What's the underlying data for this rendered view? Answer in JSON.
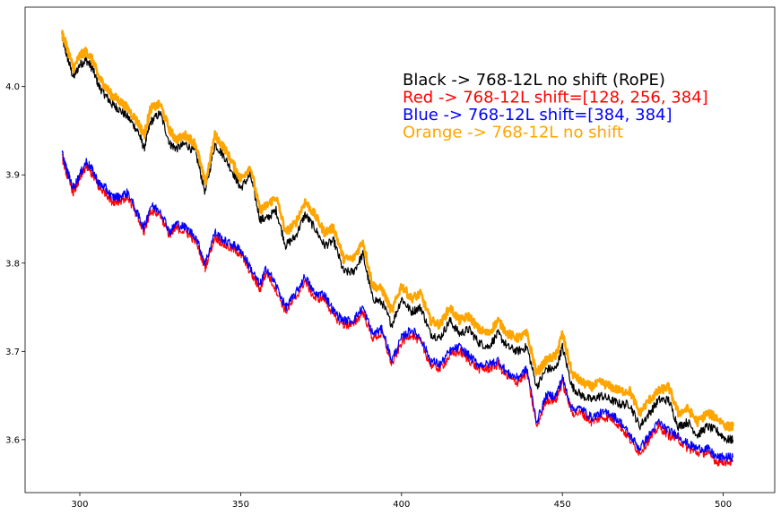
{
  "chart_data": {
    "type": "line",
    "title": "",
    "xlabel": "",
    "ylabel": "",
    "xlim": [
      283,
      516
    ],
    "ylim": [
      3.54,
      4.09
    ],
    "grid": false,
    "legend_placement": "top-right",
    "x_ticks": [
      300,
      350,
      400,
      450,
      500
    ],
    "x_tick_labels": [
      "300",
      "350",
      "400",
      "450",
      "500"
    ],
    "y_ticks": [
      3.6,
      3.7,
      3.8,
      3.9,
      4.0
    ],
    "y_tick_labels": [
      "3.6",
      "3.7",
      "3.8",
      "3.9",
      "4.0"
    ],
    "legend": [
      {
        "text": "Black -> 768-12L no shift (RoPE)",
        "color": "#000000"
      },
      {
        "text": "Red -> 768-12L shift=[128, 256, 384]",
        "color": "#ff0000"
      },
      {
        "text": "Blue -> 768-12L shift=[384, 384]",
        "color": "#0000ff"
      },
      {
        "text": "Orange -> 768-12L no shift",
        "color": "#ffa500"
      }
    ],
    "series": [
      {
        "color": "#000000",
        "stroke_width": 1.2,
        "x": [
          294.5,
          296,
          298,
          300,
          302,
          304,
          306,
          308,
          310,
          312,
          315,
          318,
          320,
          322,
          325,
          328,
          330,
          333,
          336,
          339,
          342,
          345,
          348,
          350,
          353,
          356,
          358,
          361,
          364,
          367,
          370,
          373,
          376,
          379,
          382,
          385,
          388,
          391,
          394,
          397,
          400,
          403,
          406,
          409,
          412,
          415,
          418,
          421,
          424,
          427,
          430,
          433,
          436,
          439,
          442,
          445,
          448,
          450,
          453,
          456,
          459,
          462,
          465,
          468,
          471,
          474,
          477,
          480,
          483,
          486,
          489,
          492,
          495,
          498,
          501,
          503
        ],
        "y": [
          4.055,
          4.035,
          4.01,
          4.025,
          4.03,
          4.02,
          4.0,
          3.99,
          3.98,
          3.975,
          3.965,
          3.95,
          3.93,
          3.96,
          3.97,
          3.935,
          3.93,
          3.935,
          3.925,
          3.88,
          3.935,
          3.92,
          3.9,
          3.885,
          3.9,
          3.85,
          3.85,
          3.86,
          3.82,
          3.83,
          3.855,
          3.84,
          3.82,
          3.825,
          3.79,
          3.79,
          3.81,
          3.76,
          3.755,
          3.73,
          3.76,
          3.745,
          3.75,
          3.72,
          3.715,
          3.735,
          3.72,
          3.725,
          3.71,
          3.705,
          3.72,
          3.705,
          3.7,
          3.705,
          3.66,
          3.68,
          3.68,
          3.705,
          3.66,
          3.65,
          3.645,
          3.65,
          3.645,
          3.64,
          3.64,
          3.615,
          3.63,
          3.645,
          3.645,
          3.615,
          3.62,
          3.605,
          3.615,
          3.61,
          3.6,
          3.6
        ]
      },
      {
        "color": "#ffa500",
        "stroke_width": 2.6,
        "x": [
          294.5,
          296,
          298,
          300,
          302,
          304,
          306,
          308,
          310,
          312,
          315,
          318,
          320,
          322,
          325,
          328,
          330,
          333,
          336,
          339,
          342,
          345,
          348,
          350,
          353,
          356,
          358,
          361,
          364,
          367,
          370,
          373,
          376,
          379,
          382,
          385,
          388,
          391,
          394,
          397,
          400,
          403,
          406,
          409,
          412,
          415,
          418,
          421,
          424,
          427,
          430,
          433,
          436,
          439,
          442,
          445,
          448,
          450,
          453,
          456,
          459,
          462,
          465,
          468,
          471,
          474,
          477,
          480,
          483,
          486,
          489,
          492,
          495,
          498,
          501,
          503
        ],
        "y": [
          4.06,
          4.045,
          4.02,
          4.035,
          4.04,
          4.03,
          4.01,
          4.0,
          3.99,
          3.985,
          3.975,
          3.96,
          3.945,
          3.975,
          3.98,
          3.95,
          3.94,
          3.945,
          3.935,
          3.89,
          3.945,
          3.93,
          3.91,
          3.895,
          3.91,
          3.86,
          3.865,
          3.875,
          3.835,
          3.845,
          3.87,
          3.855,
          3.835,
          3.84,
          3.805,
          3.805,
          3.825,
          3.775,
          3.77,
          3.745,
          3.775,
          3.76,
          3.765,
          3.735,
          3.73,
          3.75,
          3.735,
          3.74,
          3.725,
          3.72,
          3.735,
          3.72,
          3.715,
          3.72,
          3.675,
          3.69,
          3.695,
          3.72,
          3.675,
          3.665,
          3.66,
          3.665,
          3.66,
          3.655,
          3.655,
          3.63,
          3.645,
          3.655,
          3.66,
          3.63,
          3.635,
          3.62,
          3.63,
          3.625,
          3.615,
          3.615
        ]
      },
      {
        "color": "#ff0000",
        "stroke_width": 1.2,
        "x": [
          294.5,
          296,
          298,
          300,
          302,
          304,
          306,
          308,
          310,
          312,
          315,
          318,
          320,
          322,
          325,
          328,
          330,
          333,
          336,
          339,
          342,
          345,
          348,
          350,
          353,
          356,
          358,
          361,
          364,
          367,
          370,
          373,
          376,
          379,
          382,
          385,
          388,
          391,
          394,
          397,
          400,
          403,
          406,
          409,
          412,
          415,
          418,
          421,
          424,
          427,
          430,
          433,
          436,
          439,
          442,
          445,
          448,
          450,
          453,
          456,
          459,
          462,
          465,
          468,
          471,
          474,
          477,
          480,
          483,
          486,
          489,
          492,
          495,
          498,
          501,
          503
        ],
        "y": [
          3.92,
          3.9,
          3.88,
          3.895,
          3.91,
          3.9,
          3.885,
          3.88,
          3.87,
          3.87,
          3.875,
          3.85,
          3.835,
          3.86,
          3.855,
          3.83,
          3.84,
          3.835,
          3.825,
          3.795,
          3.83,
          3.82,
          3.815,
          3.81,
          3.79,
          3.77,
          3.79,
          3.77,
          3.745,
          3.76,
          3.78,
          3.76,
          3.76,
          3.74,
          3.73,
          3.73,
          3.745,
          3.715,
          3.72,
          3.685,
          3.71,
          3.72,
          3.71,
          3.685,
          3.68,
          3.695,
          3.7,
          3.69,
          3.68,
          3.68,
          3.685,
          3.67,
          3.665,
          3.675,
          3.615,
          3.645,
          3.645,
          3.665,
          3.63,
          3.63,
          3.62,
          3.625,
          3.625,
          3.615,
          3.6,
          3.585,
          3.6,
          3.615,
          3.605,
          3.6,
          3.59,
          3.585,
          3.585,
          3.575,
          3.575,
          3.575
        ]
      },
      {
        "color": "#0000ff",
        "stroke_width": 1.2,
        "x": [
          294.5,
          296,
          298,
          300,
          302,
          304,
          306,
          308,
          310,
          312,
          315,
          318,
          320,
          322,
          325,
          328,
          330,
          333,
          336,
          339,
          342,
          345,
          348,
          350,
          353,
          356,
          358,
          361,
          364,
          367,
          370,
          373,
          376,
          379,
          382,
          385,
          388,
          391,
          394,
          397,
          400,
          403,
          406,
          409,
          412,
          415,
          418,
          421,
          424,
          427,
          430,
          433,
          436,
          439,
          442,
          445,
          448,
          450,
          453,
          456,
          459,
          462,
          465,
          468,
          471,
          474,
          477,
          480,
          483,
          486,
          489,
          492,
          495,
          498,
          501,
          503
        ],
        "y": [
          3.925,
          3.905,
          3.885,
          3.9,
          3.915,
          3.905,
          3.89,
          3.885,
          3.875,
          3.875,
          3.88,
          3.855,
          3.84,
          3.865,
          3.86,
          3.835,
          3.845,
          3.84,
          3.83,
          3.8,
          3.835,
          3.825,
          3.82,
          3.815,
          3.795,
          3.775,
          3.795,
          3.775,
          3.75,
          3.765,
          3.785,
          3.765,
          3.765,
          3.745,
          3.735,
          3.735,
          3.75,
          3.72,
          3.725,
          3.69,
          3.715,
          3.725,
          3.715,
          3.69,
          3.685,
          3.7,
          3.705,
          3.695,
          3.685,
          3.685,
          3.69,
          3.675,
          3.67,
          3.68,
          3.62,
          3.65,
          3.65,
          3.67,
          3.635,
          3.635,
          3.625,
          3.63,
          3.63,
          3.62,
          3.605,
          3.59,
          3.605,
          3.62,
          3.61,
          3.605,
          3.595,
          3.59,
          3.59,
          3.58,
          3.58,
          3.58
        ]
      }
    ]
  }
}
